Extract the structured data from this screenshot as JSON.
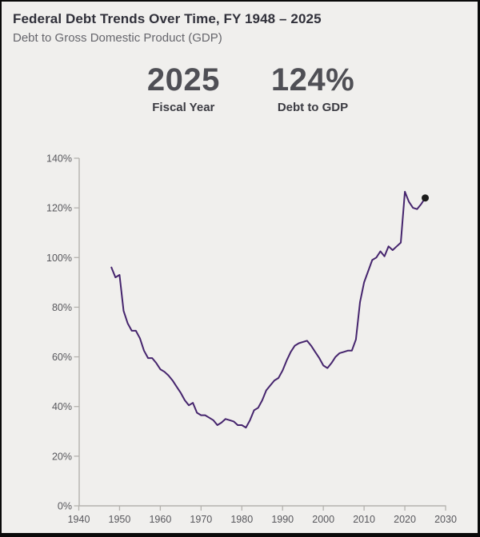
{
  "header": {
    "title": "Federal Debt Trends Over Time, FY 1948 – 2025",
    "subtitle": "Debt to Gross Domestic Product (GDP)"
  },
  "stats": {
    "fiscal_year": {
      "value": "2025",
      "label": "Fiscal Year"
    },
    "debt_to_gdp": {
      "value": "124%",
      "label": "Debt to GDP"
    }
  },
  "chart_data": {
    "type": "line",
    "title": "Debt to Gross Domestic Product (GDP)",
    "xlabel": "",
    "ylabel": "",
    "x_domain": [
      1940,
      2030
    ],
    "y_domain": [
      0,
      140
    ],
    "grid": false,
    "legend": "none",
    "x_ticks": [
      1940,
      1950,
      1960,
      1970,
      1980,
      1990,
      2000,
      2010,
      2020,
      2030
    ],
    "x_tick_labels": [
      "1940",
      "1950",
      "1960",
      "1970",
      "1980",
      "1990",
      "2000",
      "2010",
      "2020",
      "2030"
    ],
    "y_ticks": [
      0,
      20,
      40,
      60,
      80,
      100,
      120,
      140
    ],
    "y_tick_labels": [
      "0%",
      "20%",
      "40%",
      "60%",
      "80%",
      "100%",
      "120%",
      "140%"
    ],
    "series": [
      {
        "name": "Debt to GDP (%)",
        "x": [
          1948,
          1949,
          1950,
          1951,
          1952,
          1953,
          1954,
          1955,
          1956,
          1957,
          1958,
          1959,
          1960,
          1961,
          1962,
          1963,
          1964,
          1965,
          1966,
          1967,
          1968,
          1969,
          1970,
          1971,
          1972,
          1973,
          1974,
          1975,
          1976,
          1977,
          1978,
          1979,
          1980,
          1981,
          1982,
          1983,
          1984,
          1985,
          1986,
          1987,
          1988,
          1989,
          1990,
          1991,
          1992,
          1993,
          1994,
          1995,
          1996,
          1997,
          1998,
          1999,
          2000,
          2001,
          2002,
          2003,
          2004,
          2005,
          2006,
          2007,
          2008,
          2009,
          2010,
          2011,
          2012,
          2013,
          2014,
          2015,
          2016,
          2017,
          2018,
          2019,
          2020,
          2021,
          2022,
          2023,
          2024,
          2025
        ],
        "values": [
          96,
          92,
          93,
          78.5,
          73.5,
          70.5,
          70.5,
          67.5,
          62.5,
          59.5,
          59.5,
          57.5,
          55,
          54,
          52.5,
          50.5,
          48,
          45.5,
          42.5,
          40.5,
          41.5,
          37.5,
          36.5,
          36.5,
          35.5,
          34.5,
          32.5,
          33.5,
          35,
          34.5,
          34,
          32.5,
          32.5,
          31.5,
          34.5,
          38.5,
          39.5,
          42.5,
          46.5,
          48.5,
          50.5,
          51.5,
          54.5,
          58.5,
          62,
          64.5,
          65.5,
          66,
          66.5,
          64.5,
          62,
          59.5,
          56.5,
          55.5,
          57.5,
          60,
          61.5,
          62,
          62.5,
          62.5,
          67,
          82,
          90,
          94.5,
          99,
          100,
          102.5,
          100.5,
          104.5,
          103,
          104.5,
          106,
          126.5,
          122.5,
          120,
          119.5,
          121.5,
          124
        ]
      }
    ],
    "endpoint_marker": {
      "year": 2025,
      "value": 124
    },
    "colors": {
      "line": "#45246d",
      "endpoint_dot": "#1c1c1c",
      "axis": "#b4b2ae",
      "tick_text": "#57575c",
      "background": "#f0efed"
    }
  }
}
